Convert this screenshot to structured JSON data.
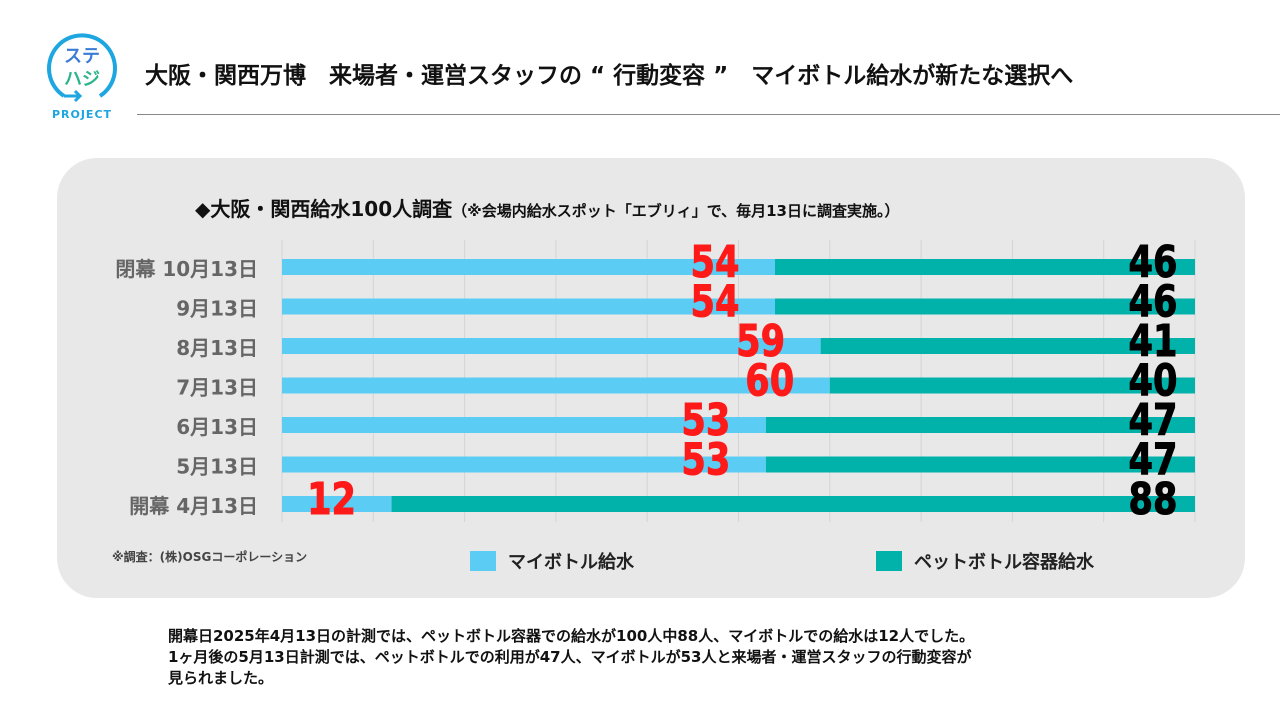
{
  "logo": {
    "text": "ステハジ",
    "sub": "PROJECT"
  },
  "header": {
    "title": "大阪・関西万博　来場者・運営スタッフの “ 行動変容 ”　マイボトル給水が新たな選択へ"
  },
  "chart_data": {
    "type": "bar",
    "stacked": true,
    "orientation": "horizontal",
    "title": "◆大阪・関西給水100人調査",
    "subtitle": "（※会場内給水スポット「エブリィ」で、毎月13日に調査実施。）",
    "categories": [
      "閉幕 10月13日",
      "9月13日",
      "8月13日",
      "7月13日",
      "6月13日",
      "5月13日",
      "開幕 4月13日"
    ],
    "series": [
      {
        "name": "マイボトル給水",
        "color": "#5bcdf5",
        "label_color": "#ff1a1a",
        "values": [
          54,
          54,
          59,
          60,
          53,
          53,
          12
        ]
      },
      {
        "name": "ペットボトル容器給水",
        "color": "#00b2a9",
        "label_color": "#000000",
        "values": [
          46,
          46,
          41,
          40,
          47,
          47,
          88
        ]
      }
    ],
    "xlim": [
      0,
      100
    ],
    "grid": true,
    "legend": "bottom"
  },
  "note": "※調査：(株)OSGコーポレーション",
  "body": [
    "開幕日2025年4月13日の計測では、ペットボトル容器での給水が100人中88人、マイボトルでの給水は12人でした。",
    "1ヶ月後の5月13日計測では、ペットボトルでの利用が47人、マイボトルが53人と来場者・運営スタッフの行動変容が",
    "見られました。"
  ]
}
